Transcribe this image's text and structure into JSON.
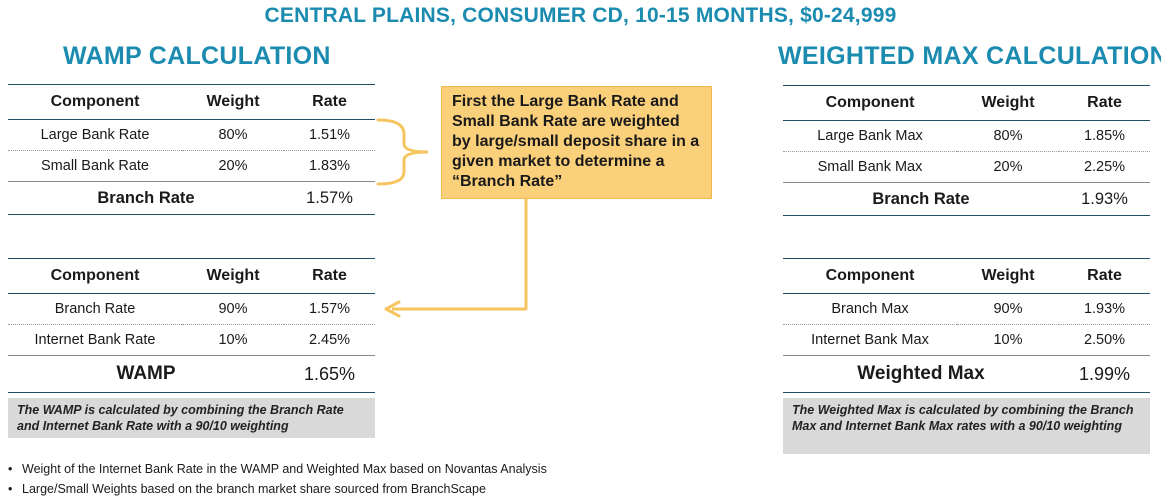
{
  "title": "CENTRAL PLAINS, CONSUMER CD, 10-15 MONTHS, $0-24,999",
  "wamp": {
    "heading": "WAMP CALCULATION",
    "headers": [
      "Component",
      "Weight",
      "Rate"
    ],
    "branch_table": {
      "rows": [
        {
          "component": "Large Bank Rate",
          "weight": "80%",
          "rate": "1.51%"
        },
        {
          "component": "Small Bank Rate",
          "weight": "20%",
          "rate": "1.83%"
        }
      ],
      "total_label": "Branch Rate",
      "total_value": "1.57%"
    },
    "final_table": {
      "rows": [
        {
          "component": "Branch Rate",
          "weight": "90%",
          "rate": "1.57%"
        },
        {
          "component": "Internet Bank Rate",
          "weight": "10%",
          "rate": "2.45%"
        }
      ],
      "total_label": "WAMP",
      "total_value": "1.65%"
    },
    "note": "The WAMP is calculated by combining the Branch Rate and Internet Bank Rate with a 90/10 weighting"
  },
  "weighted_max": {
    "heading": "WEIGHTED MAX CALCULATION",
    "headers": [
      "Component",
      "Weight",
      "Rate"
    ],
    "branch_table": {
      "rows": [
        {
          "component": "Large Bank Max",
          "weight": "80%",
          "rate": "1.85%"
        },
        {
          "component": "Small Bank Max",
          "weight": "20%",
          "rate": "2.25%"
        }
      ],
      "total_label": "Branch Rate",
      "total_value": "1.93%"
    },
    "final_table": {
      "rows": [
        {
          "component": "Branch Max",
          "weight": "90%",
          "rate": "1.93%"
        },
        {
          "component": "Internet Bank Max",
          "weight": "10%",
          "rate": "2.50%"
        }
      ],
      "total_label": "Weighted Max",
      "total_value": "1.99%"
    },
    "note": "The Weighted Max is calculated by combining the Branch Max and Internet Bank Max rates with a 90/10 weighting"
  },
  "callout": "First the Large Bank Rate and Small Bank Rate are weighted by large/small deposit share in a given market to determine a “Branch Rate”",
  "footnotes": [
    "Weight of the Internet Bank Rate in the WAMP and Weighted Max based on Novantas Analysis",
    "Large/Small Weights based on the branch market share sourced from BranchScape"
  ],
  "colors": {
    "title": "#1b8bb0",
    "callout_fill": "#fbd07a",
    "connector": "#f6c560",
    "note_fill": "#d9d9d9"
  }
}
